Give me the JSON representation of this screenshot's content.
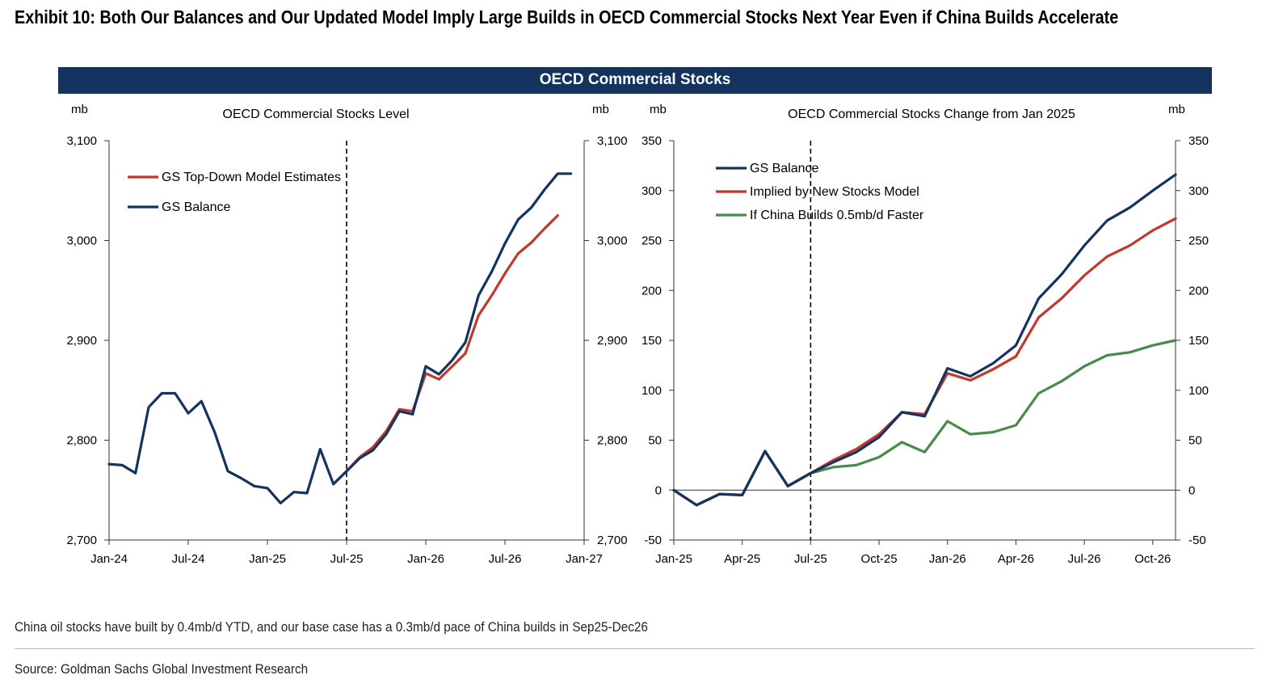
{
  "exhibit": {
    "title": "Exhibit 10: Both Our Balances and Our Updated Model Imply Large Builds in OECD Commercial Stocks Next Year Even if China Builds Accelerate",
    "banner": "OECD Commercial Stocks",
    "note": "China oil stocks have built by 0.4mb/d YTD, and our base case has a 0.3mb/d pace of China builds in Sep25-Dec26",
    "source": "Source: Goldman Sachs Global Investment Research"
  },
  "colors": {
    "navy": "#14345f",
    "red": "#c0392b",
    "green": "#4a8a4a",
    "axis": "#333333"
  },
  "chart_data": [
    {
      "type": "line",
      "title": "OECD Commercial Stocks Level",
      "left_unit": "mb",
      "right_unit": "mb",
      "x_ticks": [
        "Jan-24",
        "Jul-24",
        "Jan-25",
        "Jul-25",
        "Jan-26",
        "Jul-26",
        "Jan-27"
      ],
      "ylim": [
        2700,
        3100
      ],
      "y_ticks": [
        "2,700",
        "2,800",
        "2,900",
        "3,000",
        "3,100"
      ],
      "y_tick_values": [
        2700,
        2800,
        2900,
        3000,
        3100
      ],
      "right_y_ticks": [
        "2,700",
        "2,800",
        "2,900",
        "3,000",
        "3,100"
      ],
      "x_range_months": [
        0,
        36
      ],
      "vline_month": 18,
      "series": [
        {
          "name": "GS Balance",
          "color": "#14345f",
          "x": [
            0,
            1,
            2,
            3,
            4,
            5,
            6,
            7,
            8,
            9,
            10,
            11,
            12,
            13,
            14,
            15,
            16,
            17,
            18,
            19,
            20,
            21,
            22,
            23,
            24,
            25,
            26,
            27,
            28,
            29,
            30,
            31,
            32,
            33,
            34,
            35
          ],
          "values": [
            2776,
            2775,
            2767,
            2833,
            2847,
            2847,
            2827,
            2839,
            2808,
            2769,
            2762,
            2754,
            2752,
            2737,
            2748,
            2747,
            2791,
            2756,
            2769,
            2782,
            2790,
            2806,
            2829,
            2826,
            2874,
            2866,
            2880,
            2898,
            2945,
            2969,
            2997,
            3021,
            3033,
            3051,
            3067,
            3067
          ]
        },
        {
          "name": "GS Top-Down Model Estimates",
          "color": "#c0392b",
          "x": [
            18,
            19,
            20,
            21,
            22,
            23,
            24,
            25,
            26,
            27,
            28,
            29,
            30,
            31,
            32,
            33,
            34
          ],
          "values": [
            2769,
            2783,
            2793,
            2809,
            2831,
            2829,
            2867,
            2861,
            2874,
            2887,
            2925,
            2945,
            2967,
            2987,
            2998,
            3012,
            3025
          ]
        }
      ],
      "legend": [
        "GS Top-Down Model Estimates",
        "GS Balance"
      ]
    },
    {
      "type": "line",
      "title": "OECD Commercial Stocks Change from Jan 2025",
      "left_unit": "mb",
      "right_unit": "mb",
      "x_ticks": [
        "Jan-25",
        "Apr-25",
        "Jul-25",
        "Oct-25",
        "Jan-26",
        "Apr-26",
        "Jul-26",
        "Oct-26"
      ],
      "ylim": [
        -50,
        350
      ],
      "y_ticks": [
        "-50",
        "0",
        "50",
        "100",
        "150",
        "200",
        "250",
        "300",
        "350"
      ],
      "y_tick_values": [
        -50,
        0,
        50,
        100,
        150,
        200,
        250,
        300,
        350
      ],
      "right_y_ticks": [
        "-50",
        "0",
        "50",
        "100",
        "150",
        "200",
        "250",
        "300",
        "350"
      ],
      "x_range_months": [
        0,
        22
      ],
      "vline_month": 6,
      "series": [
        {
          "name": "GS Balance",
          "color": "#14345f",
          "x": [
            0,
            1,
            2,
            3,
            4,
            5,
            6,
            7,
            8,
            9,
            10,
            11,
            12,
            13,
            14,
            15,
            16,
            17,
            18,
            19,
            20,
            21,
            22
          ],
          "values": [
            0,
            -15,
            -4,
            -5,
            39,
            4,
            17,
            28,
            38,
            53,
            78,
            74,
            122,
            114,
            127,
            145,
            192,
            216,
            245,
            270,
            283,
            300,
            316
          ]
        },
        {
          "name": "Implied by New Stocks Model",
          "color": "#c0392b",
          "x": [
            0,
            1,
            2,
            3,
            4,
            5,
            6,
            7,
            8,
            9,
            10,
            11,
            12,
            13,
            14,
            15,
            16,
            17,
            18,
            19,
            20,
            21,
            22
          ],
          "values": [
            0,
            -15,
            -4,
            -5,
            39,
            4,
            17,
            30,
            41,
            56,
            78,
            76,
            117,
            110,
            121,
            134,
            173,
            192,
            215,
            234,
            245,
            260,
            272
          ]
        },
        {
          "name": "If China Builds 0.5mb/d Faster",
          "color": "#4a8a4a",
          "x": [
            0,
            1,
            2,
            3,
            4,
            5,
            6,
            7,
            8,
            9,
            10,
            11,
            12,
            13,
            14,
            15,
            16,
            17,
            18,
            19,
            20,
            21,
            22
          ],
          "values": [
            0,
            -15,
            -4,
            -5,
            39,
            4,
            17,
            23,
            25,
            33,
            48,
            38,
            69,
            56,
            58,
            65,
            97,
            109,
            124,
            135,
            138,
            145,
            150
          ]
        }
      ],
      "legend": [
        "GS Balance",
        "Implied by New Stocks Model",
        "If China Builds 0.5mb/d Faster"
      ]
    }
  ]
}
